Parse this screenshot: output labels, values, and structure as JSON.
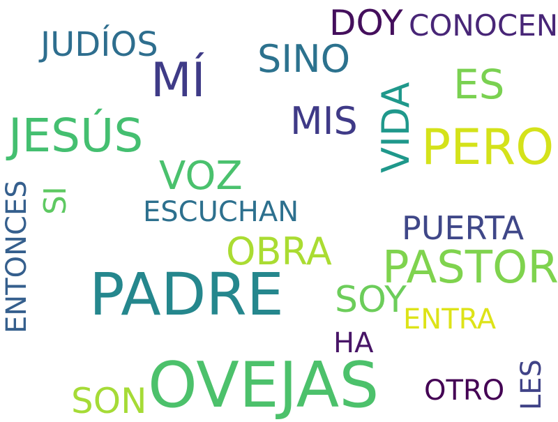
{
  "words": [
    {
      "text": "OVEJAS",
      "color": "#4cc16b"
    },
    {
      "text": "PADRE",
      "color": "#25878d"
    },
    {
      "text": "PASTOR",
      "color": "#7fd34e"
    },
    {
      "text": "PERO",
      "color": "#d4e21a"
    },
    {
      "text": "JESÚS",
      "color": "#44bf70"
    },
    {
      "text": "MÍ",
      "color": "#3f3b87"
    },
    {
      "text": "VIDA",
      "color": "#1f988b"
    },
    {
      "text": "OBRA",
      "color": "#aadc32"
    },
    {
      "text": "SINO",
      "color": "#2c728e"
    },
    {
      "text": "ES",
      "color": "#7ad151"
    },
    {
      "text": "VOZ",
      "color": "#4ac16d"
    },
    {
      "text": "MIS",
      "color": "#3f3a87"
    },
    {
      "text": "SOY",
      "color": "#6ccd5a"
    },
    {
      "text": "DOY",
      "color": "#440f5c"
    },
    {
      "text": "SON",
      "color": "#a5db36"
    },
    {
      "text": "JUDÍOS",
      "color": "#2e6e8e"
    },
    {
      "text": "PUERTA",
      "color": "#3f4788"
    },
    {
      "text": "CONOCEN",
      "color": "#482677"
    },
    {
      "text": "ESCUCHAN",
      "color": "#2d708e"
    },
    {
      "text": "ENTONCES",
      "color": "#355f8d"
    },
    {
      "text": "ENTRA",
      "color": "#dde318"
    },
    {
      "text": "OTRO",
      "color": "#440154"
    },
    {
      "text": "LES",
      "color": "#404387"
    },
    {
      "text": "SI",
      "color": "#5ec962"
    },
    {
      "text": "HA",
      "color": "#481567"
    }
  ]
}
